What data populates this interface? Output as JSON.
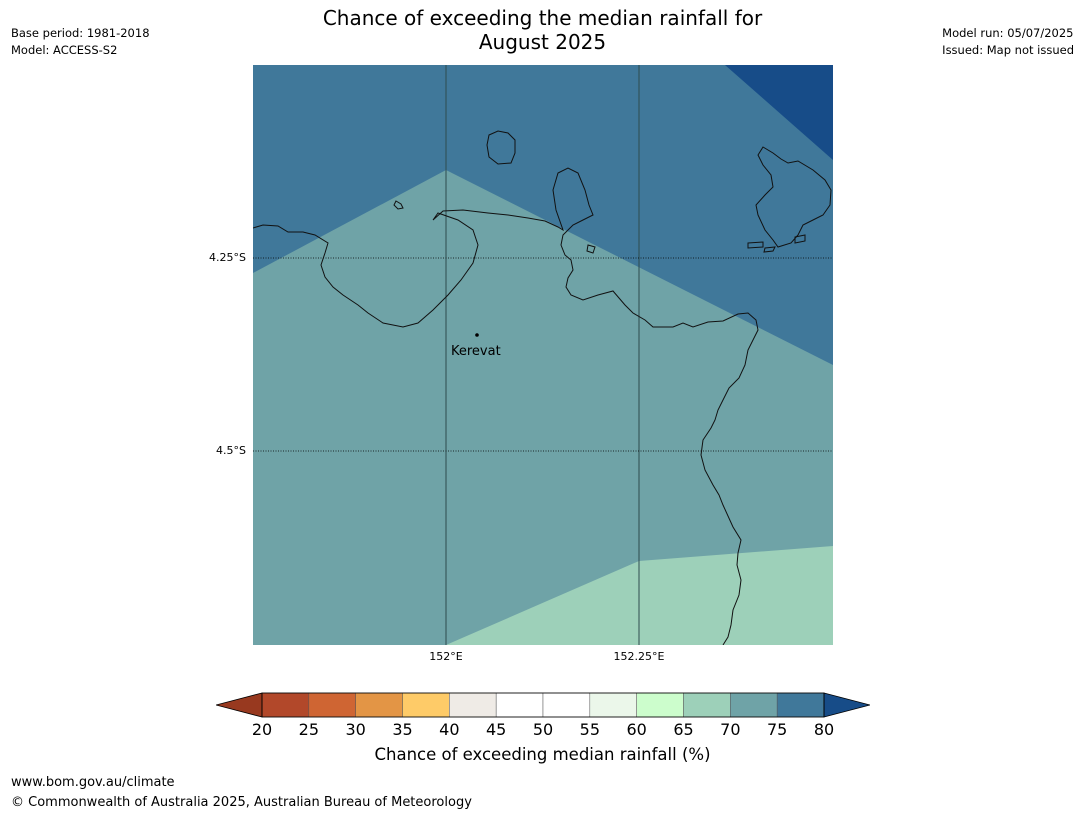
{
  "title": {
    "line1": "Chance of exceeding the median rainfall for",
    "line2": "August 2025"
  },
  "meta_left": {
    "base_period": "Base period: 1981-2018",
    "model": "Model: ACCESS-S2"
  },
  "meta_right": {
    "model_run": "Model run: 05/07/2025",
    "issued": "Issued: Map not issued"
  },
  "map": {
    "place_label": "Kerevat",
    "lat_labels": [
      "4.25°S",
      "4.5°S"
    ],
    "lon_labels": [
      "152°E",
      "152.25°E"
    ],
    "region_colors": {
      "band_75_80": "#40789a",
      "band_70_75": "#6fa3a7",
      "band_65_70": "#9dd0b9",
      "band_above_80": "#174c88"
    }
  },
  "colorbar": {
    "ticks": [
      "20",
      "25",
      "30",
      "35",
      "40",
      "45",
      "50",
      "55",
      "60",
      "65",
      "70",
      "75",
      "80"
    ],
    "colors": [
      "#b2482a",
      "#cf6533",
      "#e39545",
      "#fecb68",
      "#efebe6",
      "#ffffff",
      "#ffffff",
      "#ebf7ea",
      "#ccfdcc",
      "#9dd0b9",
      "#6fa3a7",
      "#40789a"
    ],
    "low_extend_color": "#98391f",
    "high_extend_color": "#174c88",
    "label": "Chance of exceeding median rainfall (%)"
  },
  "footer": {
    "url": "www.bom.gov.au/climate",
    "copyright": "© Commonwealth of Australia 2025, Australian Bureau of Meteorology"
  }
}
